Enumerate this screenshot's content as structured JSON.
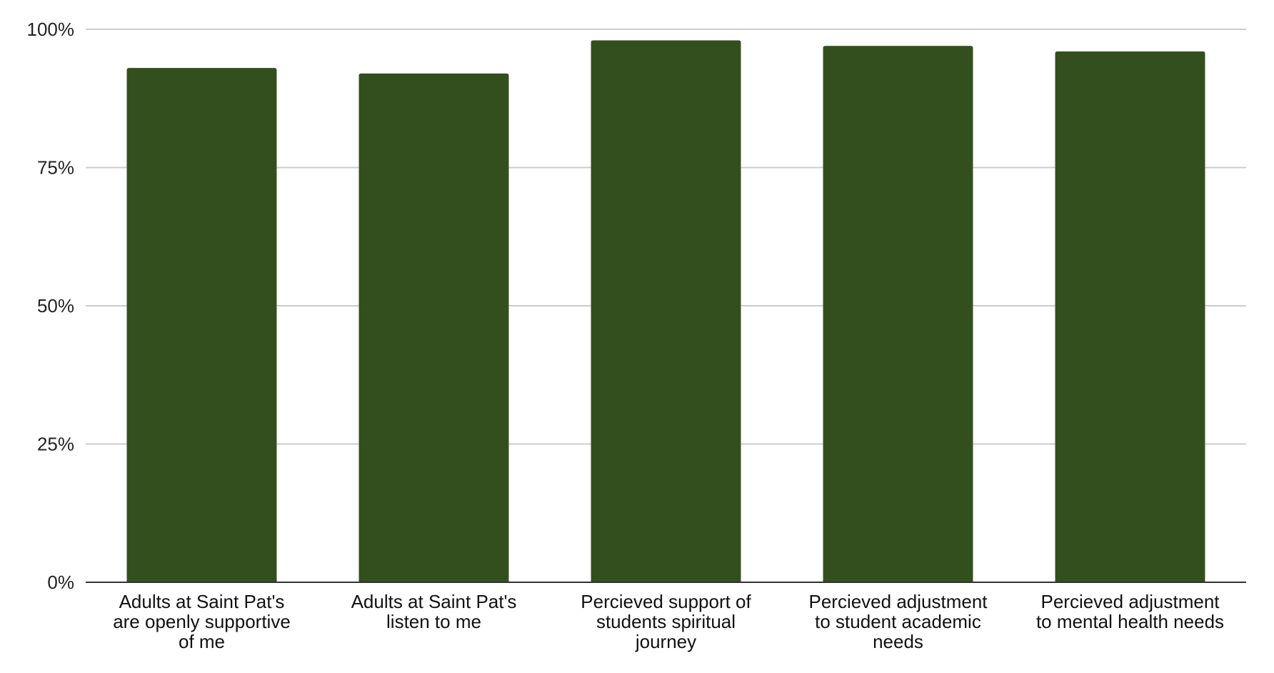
{
  "chart_data": {
    "type": "bar",
    "title": "",
    "xlabel": "",
    "ylabel": "",
    "ylim": [
      0,
      100
    ],
    "y_unit": "%",
    "y_ticks": [
      0,
      25,
      50,
      75,
      100
    ],
    "y_tick_labels": [
      "0%",
      "25%",
      "50%",
      "75%",
      "100%"
    ],
    "grid": true,
    "legend": "none",
    "bar_color": "#334f1e",
    "grid_color": "#cccccc",
    "axis_color": "#333333",
    "categories": [
      [
        "Adults at Saint Pat's",
        "are openly supportive",
        "of me"
      ],
      [
        "Adults at Saint Pat's",
        "listen to me"
      ],
      [
        "Percieved support of",
        "students spiritual",
        "journey"
      ],
      [
        "Percieved adjustment",
        "to student academic",
        "needs"
      ],
      [
        "Percieved adjustment",
        "to mental health needs"
      ]
    ],
    "values": [
      93,
      92,
      98,
      97,
      96
    ]
  }
}
